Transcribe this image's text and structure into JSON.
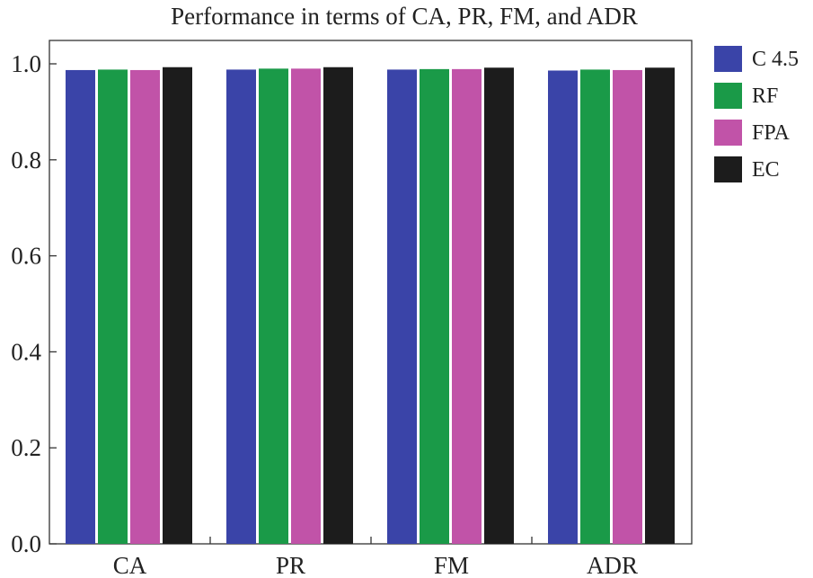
{
  "chart_data": {
    "type": "bar",
    "title": "Performance in terms of CA, PR, FM, and ADR",
    "xlabel": "",
    "ylabel": "",
    "categories": [
      "CA",
      "PR",
      "FM",
      "ADR"
    ],
    "series": [
      {
        "name": "C 4.5",
        "color": "#3a44a8",
        "values": [
          0.987,
          0.988,
          0.988,
          0.986
        ]
      },
      {
        "name": "RF",
        "color": "#1a9a48",
        "values": [
          0.988,
          0.99,
          0.989,
          0.988
        ]
      },
      {
        "name": "FPA",
        "color": "#c153a8",
        "values": [
          0.987,
          0.99,
          0.989,
          0.987
        ]
      },
      {
        "name": "EC",
        "color": "#1c1c1c",
        "values": [
          0.993,
          0.993,
          0.992,
          0.992
        ]
      }
    ],
    "ylim": [
      0,
      1.0
    ],
    "yticks": [
      "0.0",
      "0.2",
      "0.4",
      "0.6",
      "0.8",
      "1.0"
    ],
    "grid": false,
    "legend_position": "right"
  }
}
